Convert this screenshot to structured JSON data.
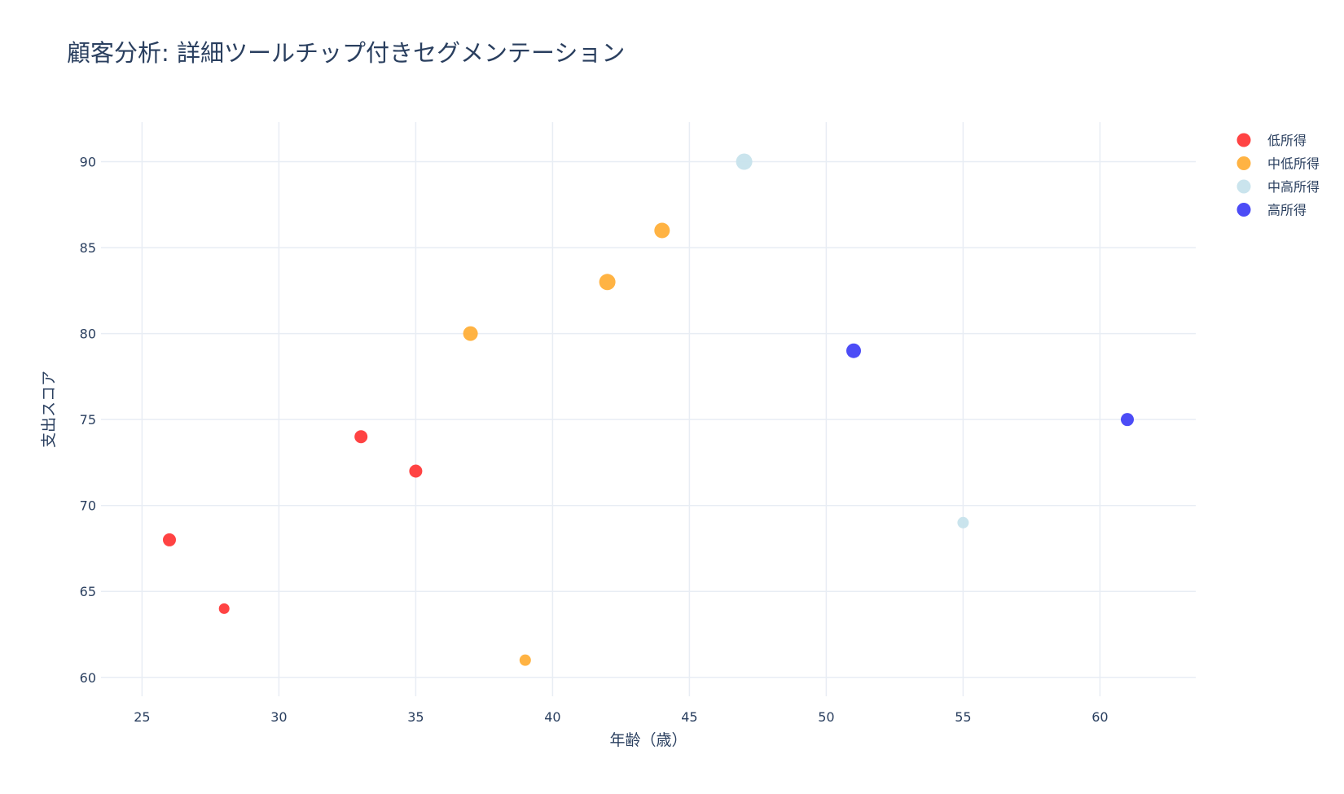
{
  "chart_data": {
    "type": "scatter",
    "title": "顧客分析: 詳細ツールチップ付きセグメンテーション",
    "xlabel": "年齢（歳）",
    "ylabel": "支出スコア",
    "xlim": [
      23.5,
      63.5
    ],
    "ylim": [
      58.9,
      92.3
    ],
    "xticks": [
      25,
      30,
      35,
      40,
      45,
      50,
      55,
      60
    ],
    "yticks": [
      60,
      65,
      70,
      75,
      80,
      85,
      90
    ],
    "grid": true,
    "legend_position": "top-right",
    "series": [
      {
        "name": "低所得",
        "color": "#ff3333",
        "points": [
          {
            "x": 26,
            "y": 68,
            "size": 16
          },
          {
            "x": 28,
            "y": 64,
            "size": 13
          },
          {
            "x": 33,
            "y": 74,
            "size": 16
          },
          {
            "x": 35,
            "y": 72,
            "size": 16
          }
        ]
      },
      {
        "name": "中低所得",
        "color": "#ffad33",
        "points": [
          {
            "x": 37,
            "y": 80,
            "size": 18
          },
          {
            "x": 39,
            "y": 61,
            "size": 14
          },
          {
            "x": 42,
            "y": 83,
            "size": 20
          },
          {
            "x": 44,
            "y": 86,
            "size": 19
          }
        ]
      },
      {
        "name": "中高所得",
        "color": "#c6e2ec",
        "points": [
          {
            "x": 47,
            "y": 90,
            "size": 20
          },
          {
            "x": 55,
            "y": 69,
            "size": 14
          }
        ]
      },
      {
        "name": "高所得",
        "color": "#3d3df5",
        "points": [
          {
            "x": 51,
            "y": 79,
            "size": 18
          },
          {
            "x": 61,
            "y": 75,
            "size": 16
          }
        ]
      }
    ]
  }
}
